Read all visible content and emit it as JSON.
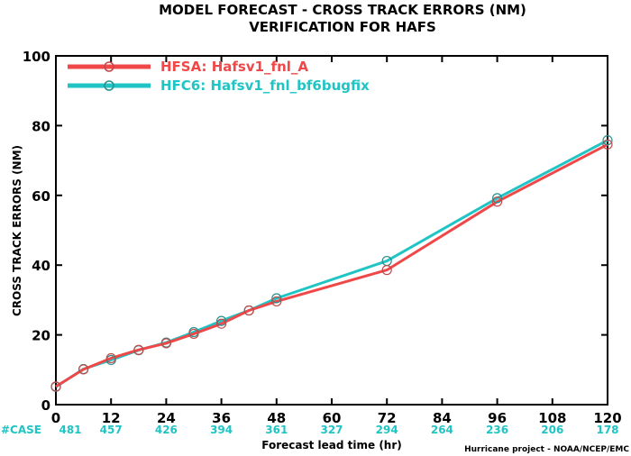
{
  "chart_data": {
    "type": "line",
    "title": "MODEL FORECAST - CROSS TRACK ERRORS (NM)",
    "subtitle": "VERIFICATION FOR HAFS",
    "xlabel": "Forecast lead time (hr)",
    "ylabel": "CROSS TRACK ERRORS (NM)",
    "xlim": [
      0,
      120
    ],
    "ylim": [
      0,
      100
    ],
    "xticks": [
      0,
      12,
      24,
      36,
      48,
      60,
      72,
      84,
      96,
      108,
      120
    ],
    "yticks": [
      0,
      20,
      40,
      60,
      80,
      100
    ],
    "grid": false,
    "legend_position": "top-left",
    "series": [
      {
        "name": "HFSA: Hafsv1_fnl_A",
        "color": "#f04848",
        "x": [
          0,
          6,
          12,
          18,
          24,
          30,
          36,
          42,
          48,
          72,
          96,
          120
        ],
        "y": [
          5.2,
          10.1,
          13.3,
          15.7,
          17.6,
          20.3,
          23.2,
          27.0,
          29.6,
          38.6,
          58.2,
          74.6
        ]
      },
      {
        "name": "HFC6: Hafsv1_fnl_bf6bugfix",
        "color": "#20c4c4",
        "x": [
          0,
          6,
          12,
          18,
          24,
          30,
          36,
          42,
          48,
          72,
          96,
          120
        ],
        "y": [
          5.1,
          10.2,
          12.8,
          15.6,
          17.8,
          20.8,
          24.0,
          27.0,
          30.5,
          41.2,
          59.2,
          75.8
        ]
      }
    ],
    "cases_label": "#CASE",
    "cases": [
      {
        "x": 0,
        "n": "481"
      },
      {
        "x": 12,
        "n": "457"
      },
      {
        "x": 24,
        "n": "426"
      },
      {
        "x": 36,
        "n": "394"
      },
      {
        "x": 48,
        "n": "361"
      },
      {
        "x": 60,
        "n": "327"
      },
      {
        "x": 72,
        "n": "294"
      },
      {
        "x": 84,
        "n": "264"
      },
      {
        "x": 96,
        "n": "236"
      },
      {
        "x": 108,
        "n": "206"
      },
      {
        "x": 120,
        "n": "178"
      }
    ],
    "credit": "Hurricane project - NOAA/NCEP/EMC"
  }
}
